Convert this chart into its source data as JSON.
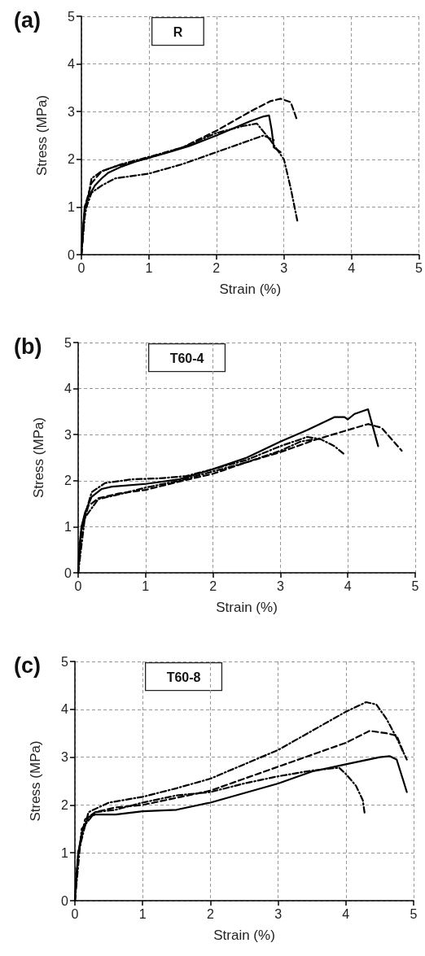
{
  "chart_data": [
    {
      "type": "line",
      "title": "(a)",
      "annotations": [
        "R"
      ],
      "xlabel": "Strain (%)",
      "ylabel": "Stress (MPa)",
      "xlim": [
        0,
        5
      ],
      "ylim": [
        0,
        5
      ],
      "xticks": [
        0,
        1,
        2,
        3,
        4,
        5
      ],
      "yticks": [
        0,
        1,
        2,
        3,
        4,
        5
      ],
      "grid": true,
      "marker": "none",
      "series": [
        {
          "color": "#000000",
          "line_style": "solid",
          "x": [
            0,
            0.02,
            0.05,
            0.1,
            0.2,
            0.3,
            0.4,
            0.6,
            0.8,
            1,
            1.3,
            1.6,
            2,
            2.3,
            2.5,
            2.7,
            2.78,
            2.82,
            2.85,
            2.95
          ],
          "values": [
            0,
            0.5,
            1.0,
            1.2,
            1.45,
            1.6,
            1.72,
            1.85,
            1.95,
            2.03,
            2.15,
            2.28,
            2.5,
            2.68,
            2.8,
            2.9,
            2.92,
            2.6,
            2.25,
            2.15
          ]
        },
        {
          "color": "#000000",
          "line_style": "dashed",
          "x": [
            0,
            0.05,
            0.15,
            0.3,
            0.5,
            1,
            1.5,
            2,
            2.5,
            2.8,
            2.95,
            3.1,
            3.2
          ],
          "values": [
            0,
            1.0,
            1.5,
            1.75,
            1.85,
            2.03,
            2.25,
            2.6,
            3.0,
            3.22,
            3.27,
            3.2,
            2.8
          ]
        },
        {
          "color": "#000000",
          "line_style": "dotted",
          "x": [
            0,
            0.05,
            0.15,
            0.3,
            0.5,
            1,
            1.5,
            2,
            2.5,
            2.7,
            2.85
          ],
          "values": [
            0,
            0.9,
            1.3,
            1.45,
            1.6,
            1.7,
            1.9,
            2.15,
            2.4,
            2.5,
            2.4
          ]
        },
        {
          "color": "#000000",
          "line_style": "dotted",
          "x": [
            0,
            0.05,
            0.15,
            0.3,
            0.6,
            1,
            1.5,
            2,
            2.4,
            2.6,
            2.8,
            3.0,
            3.1,
            3.2
          ],
          "values": [
            0,
            0.8,
            1.6,
            1.75,
            1.9,
            2.05,
            2.25,
            2.55,
            2.7,
            2.75,
            2.4,
            2.0,
            1.4,
            0.7
          ]
        }
      ]
    },
    {
      "type": "line",
      "title": "(b)",
      "annotations": [
        "T60-4"
      ],
      "xlabel": "Strain (%)",
      "ylabel": "Stress (MPa)",
      "xlim": [
        0,
        5
      ],
      "ylim": [
        0,
        5
      ],
      "xticks": [
        0,
        1,
        2,
        3,
        4,
        5
      ],
      "yticks": [
        0,
        1,
        2,
        3,
        4,
        5
      ],
      "grid": true,
      "marker": "none",
      "series": [
        {
          "color": "#000000",
          "line_style": "solid",
          "x": [
            0,
            0.02,
            0.05,
            0.1,
            0.2,
            0.35,
            0.5,
            1,
            1.5,
            2,
            2.5,
            3,
            3.4,
            3.8,
            3.95,
            4.0,
            4.1,
            4.3,
            4.45
          ],
          "values": [
            0,
            0.6,
            1.0,
            1.3,
            1.65,
            1.82,
            1.87,
            1.93,
            2.03,
            2.25,
            2.5,
            2.85,
            3.1,
            3.38,
            3.38,
            3.33,
            3.45,
            3.55,
            2.75
          ]
        },
        {
          "color": "#000000",
          "line_style": "dashed",
          "x": [
            0,
            0.05,
            0.15,
            0.3,
            0.6,
            1,
            1.5,
            2,
            2.5,
            3,
            3.5,
            4,
            4.3,
            4.5,
            4.8
          ],
          "values": [
            0,
            0.9,
            1.45,
            1.62,
            1.72,
            1.8,
            1.98,
            2.15,
            2.4,
            2.62,
            2.88,
            3.1,
            3.23,
            3.15,
            2.65
          ]
        },
        {
          "color": "#000000",
          "line_style": "dotted",
          "x": [
            0,
            0.05,
            0.2,
            0.4,
            0.8,
            1.2,
            1.6,
            2,
            2.5,
            3,
            3.4,
            3.6,
            3.8,
            3.95
          ],
          "values": [
            0,
            1.0,
            1.75,
            1.95,
            2.03,
            2.05,
            2.1,
            2.25,
            2.45,
            2.75,
            2.95,
            2.9,
            2.75,
            2.57
          ]
        },
        {
          "color": "#000000",
          "line_style": "dotted",
          "x": [
            0,
            0.1,
            0.3,
            0.6,
            1,
            1.5,
            2,
            2.5,
            3,
            3.3,
            3.5
          ],
          "values": [
            0,
            1.2,
            1.6,
            1.7,
            1.85,
            2.0,
            2.2,
            2.4,
            2.65,
            2.85,
            2.9
          ]
        }
      ]
    },
    {
      "type": "line",
      "title": "(c)",
      "annotations": [
        "T60-8"
      ],
      "xlabel": "Strain (%)",
      "ylabel": "Stress (MPa)",
      "xlim": [
        0,
        5
      ],
      "ylim": [
        0,
        5
      ],
      "xticks": [
        0,
        1,
        2,
        3,
        4,
        5
      ],
      "yticks": [
        0,
        1,
        2,
        3,
        4,
        5
      ],
      "grid": true,
      "marker": "none",
      "series": [
        {
          "color": "#000000",
          "line_style": "solid",
          "x": [
            0,
            0.02,
            0.05,
            0.1,
            0.2,
            0.3,
            0.6,
            1,
            1.5,
            2,
            2.5,
            3,
            3.5,
            4,
            4.5,
            4.65,
            4.75,
            4.85,
            4.9
          ],
          "values": [
            0,
            0.5,
            1.0,
            1.4,
            1.75,
            1.8,
            1.8,
            1.87,
            1.9,
            2.05,
            2.25,
            2.45,
            2.7,
            2.85,
            3.0,
            3.02,
            2.95,
            2.5,
            2.27
          ]
        },
        {
          "color": "#000000",
          "line_style": "dashed",
          "x": [
            0,
            0.05,
            0.15,
            0.3,
            0.6,
            1,
            1.5,
            2,
            2.5,
            3,
            3.5,
            4,
            4.35,
            4.6,
            4.75,
            4.85
          ],
          "values": [
            0,
            1.0,
            1.7,
            1.85,
            1.95,
            2.0,
            2.15,
            2.3,
            2.55,
            2.8,
            3.05,
            3.3,
            3.55,
            3.5,
            3.45,
            3.1
          ]
        },
        {
          "color": "#000000",
          "line_style": "dotted",
          "x": [
            0,
            0.05,
            0.2,
            0.5,
            1,
            1.5,
            2,
            2.5,
            3,
            3.5,
            4,
            4.3,
            4.45,
            4.6,
            4.75,
            4.9
          ],
          "values": [
            0,
            1.0,
            1.85,
            2.05,
            2.17,
            2.35,
            2.55,
            2.85,
            3.15,
            3.55,
            3.95,
            4.15,
            4.1,
            3.8,
            3.4,
            2.95
          ]
        },
        {
          "color": "#000000",
          "line_style": "dotted",
          "x": [
            0,
            0.1,
            0.3,
            0.6,
            1,
            1.5,
            2,
            2.5,
            3,
            3.5,
            3.9,
            4.0,
            4.15,
            4.25,
            4.28
          ],
          "values": [
            0,
            1.5,
            1.85,
            1.9,
            2.05,
            2.2,
            2.27,
            2.45,
            2.6,
            2.72,
            2.78,
            2.65,
            2.4,
            2.1,
            1.8
          ]
        }
      ]
    }
  ]
}
